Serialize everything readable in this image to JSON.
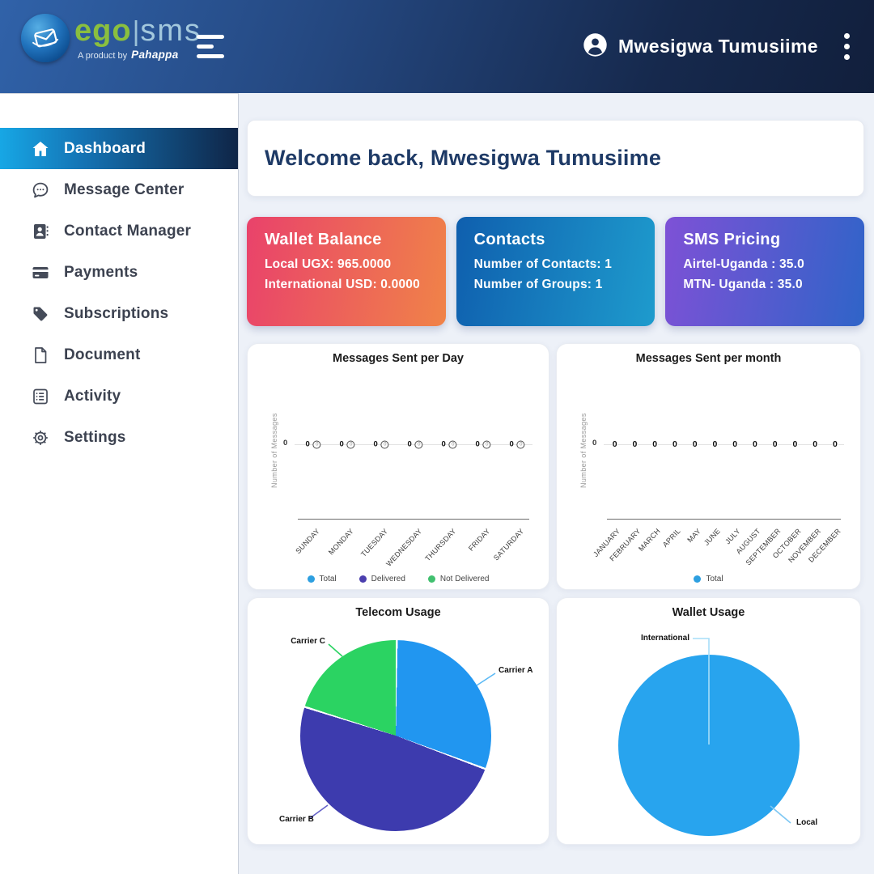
{
  "header": {
    "logo": {
      "ego": "ego",
      "separator": "|",
      "sms": "sms",
      "tagline": "A product by",
      "brand": "Pahappa"
    },
    "user_name": "Mwesigwa Tumusiime"
  },
  "sidebar": {
    "items": [
      {
        "label": "Dashboard",
        "icon": "home-icon",
        "active": true
      },
      {
        "label": "Message Center",
        "icon": "chat-icon",
        "active": false
      },
      {
        "label": "Contact Manager",
        "icon": "contact-card-icon",
        "active": false
      },
      {
        "label": "Payments",
        "icon": "credit-card-icon",
        "active": false
      },
      {
        "label": "Subscriptions",
        "icon": "tag-icon",
        "active": false
      },
      {
        "label": "Document",
        "icon": "document-icon",
        "active": false
      },
      {
        "label": "Activity",
        "icon": "activity-list-icon",
        "active": false
      },
      {
        "label": "Settings",
        "icon": "gear-icon",
        "active": false
      }
    ]
  },
  "main": {
    "welcome": "Welcome back, Mwesigwa Tumusiime",
    "stat_cards": [
      {
        "title": "Wallet Balance",
        "lines": [
          "Local UGX: 965.0000",
          "International USD: 0.0000"
        ],
        "gradient": [
          "#e9426b",
          "#f08348"
        ]
      },
      {
        "title": "Contacts",
        "lines": [
          "Number of Contacts: 1",
          "Number of Groups: 1"
        ],
        "gradient": [
          "#0f5fae",
          "#1e9bcd"
        ]
      },
      {
        "title": "SMS Pricing",
        "lines": [
          "Airtel-Uganda : 35.0",
          "MTN- Uganda : 35.0"
        ],
        "gradient": [
          "#7e51d6",
          "#2f64c8"
        ]
      }
    ]
  },
  "chart_data": [
    {
      "type": "line",
      "title": "Messages Sent per Day",
      "ylabel": "Number of Messages",
      "xlabel": "",
      "categories": [
        "SUNDAY",
        "MONDAY",
        "TUESDAY",
        "WEDNESDAY",
        "THURSDAY",
        "FRIDAY",
        "SATURDAY"
      ],
      "series": [
        {
          "name": "Total",
          "color": "#2d9fe0",
          "values": [
            0,
            0,
            0,
            0,
            0,
            0,
            0
          ]
        },
        {
          "name": "Delivered",
          "color": "#4b3fae",
          "values": [
            0,
            0,
            0,
            0,
            0,
            0,
            0
          ]
        },
        {
          "name": "Not Delivered",
          "color": "#41c06f",
          "values": [
            0,
            0,
            0,
            0,
            0,
            0,
            0
          ]
        }
      ],
      "ylim": [
        0,
        1
      ],
      "grid": false,
      "legend_position": "bottom"
    },
    {
      "type": "line",
      "title": "Messages Sent per month",
      "ylabel": "Number of Messages",
      "xlabel": "",
      "categories": [
        "JANUARY",
        "FEBRUARY",
        "MARCH",
        "APRIL",
        "MAY",
        "JUNE",
        "JULY",
        "AUGUST",
        "SEPTEMBER",
        "OCTOBER",
        "NOVEMBER",
        "DECEMBER"
      ],
      "series": [
        {
          "name": "Total",
          "color": "#2d9fe0",
          "values": [
            0,
            0,
            0,
            0,
            0,
            0,
            0,
            0,
            0,
            0,
            0,
            0
          ]
        }
      ],
      "ylim": [
        0,
        1
      ],
      "grid": false,
      "legend_position": "bottom"
    },
    {
      "type": "pie",
      "title": "Telecom Usage",
      "slices": [
        {
          "label": "Carrier A",
          "value": 30.5,
          "color": "#2196f0"
        },
        {
          "label": "Carrier B",
          "value": 49.2,
          "color": "#3d3bae"
        },
        {
          "label": "Carrier C",
          "value": 20.3,
          "color": "#2bd362"
        }
      ]
    },
    {
      "type": "pie",
      "title": "Wallet Usage",
      "slices": [
        {
          "label": "Local",
          "value": 99.7,
          "color": "#28a4ee"
        },
        {
          "label": "International",
          "value": 0.3,
          "color": "#a6ddf8"
        }
      ]
    }
  ]
}
